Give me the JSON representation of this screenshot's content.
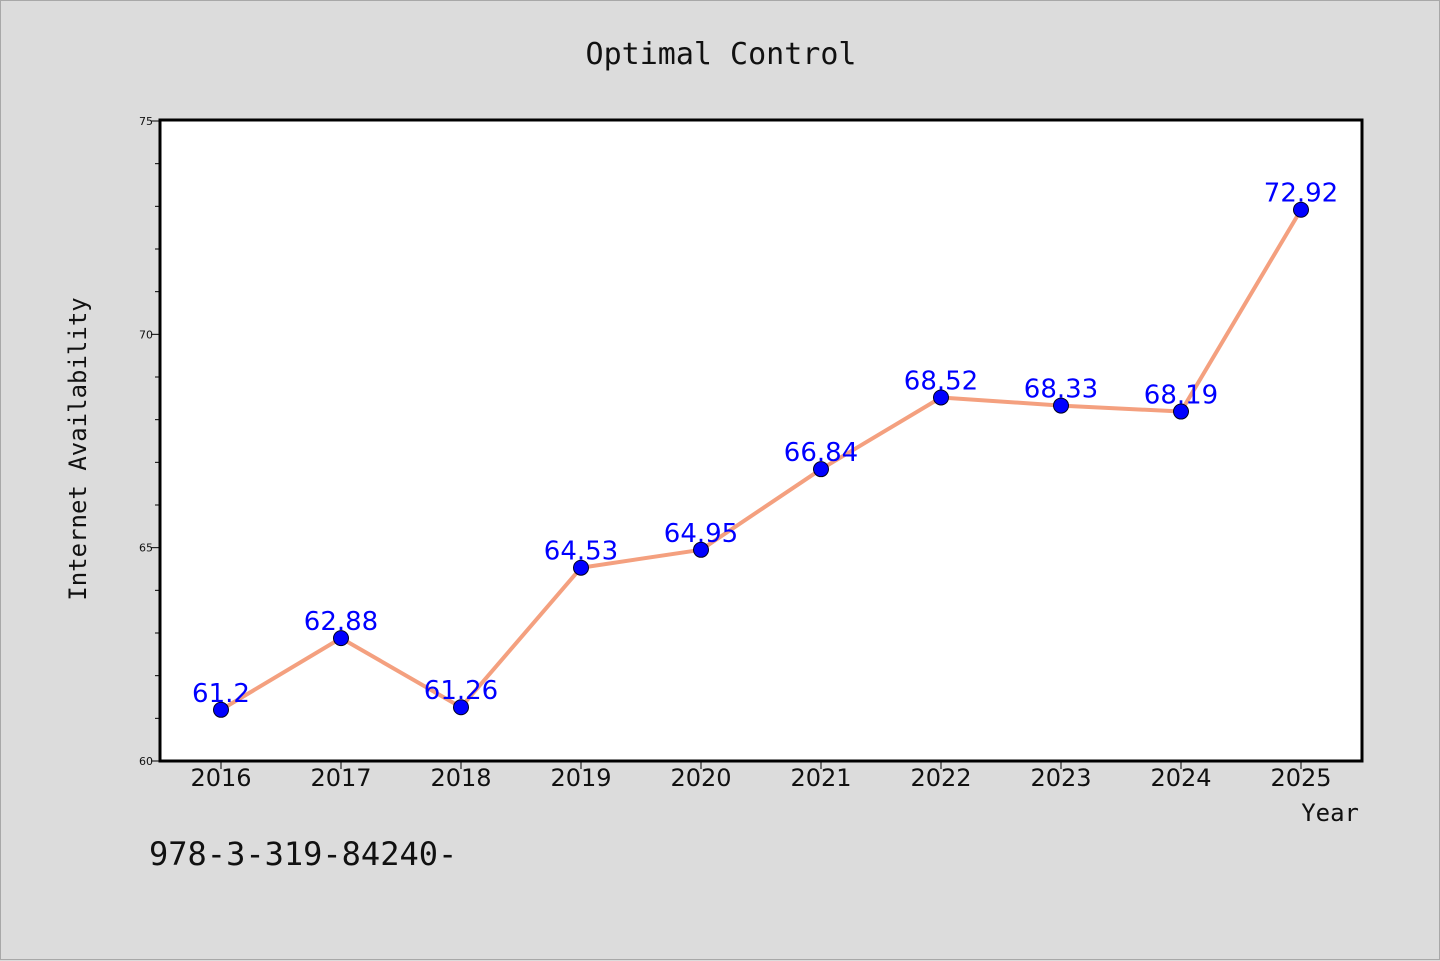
{
  "footer_text": "978-3-319-84240-",
  "chart_data": {
    "type": "line",
    "title": "Optimal Control",
    "xlabel": "Year",
    "ylabel": "Internet Availability",
    "categories": [
      "2016",
      "2017",
      "2018",
      "2019",
      "2020",
      "2021",
      "2022",
      "2023",
      "2024",
      "2025"
    ],
    "series": [
      {
        "values": [
          61.2,
          62.88,
          61.26,
          64.53,
          64.95,
          66.84,
          68.52,
          68.33,
          68.19,
          72.92
        ],
        "line_color": "#f4a07f",
        "marker_color": "#0000ff"
      }
    ],
    "data_labels": [
      "61.2",
      "62.88",
      "61.26",
      "64.53",
      "64.95",
      "66.84",
      "68.52",
      "68.33",
      "68.19",
      "72.92"
    ],
    "ylim": [
      60,
      75
    ],
    "yticks": [
      "60",
      "65",
      "70",
      "75"
    ],
    "ytick_values": [
      60,
      65,
      70,
      75
    ],
    "grid": false,
    "colors": {
      "background": "#dcdcdc",
      "plot_background": "#ffffff",
      "line": "#f4a07f",
      "markers": "#0000ff",
      "labels": "#0000ff"
    }
  }
}
